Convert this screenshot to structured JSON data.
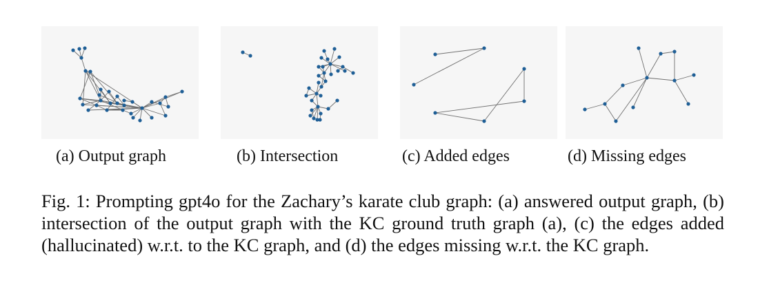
{
  "figure": {
    "subcaptions": {
      "a": "(a) Output graph",
      "b": "(b) Intersection",
      "c": "(c) Added edges",
      "d": "(d) Missing edges"
    },
    "caption": "Fig. 1: Prompting gpt4o for the Zachary’s karate club graph: (a) answered output graph, (b) intersection of the output graph with the KC ground truth graph (a), (c) the edges added (hallucinated) w.r.t. to the KC graph, and (d) the edges missing w.r.t. the KC graph."
  },
  "colors": {
    "node": "#1f5f96",
    "edge": "#6f6f6f",
    "panel_bg": "#f6f6f6"
  }
}
